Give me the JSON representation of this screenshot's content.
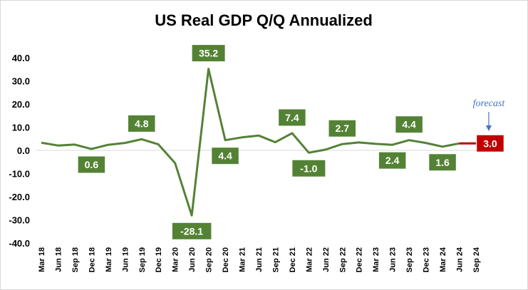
{
  "chart_data": {
    "type": "line",
    "title": "US Real GDP Q/Q Annualized",
    "xlabel": "",
    "ylabel": "",
    "ylim": [
      -40,
      40
    ],
    "yticks": [
      "40.0",
      "30.0",
      "20.0",
      "10.0",
      "0.0",
      "-10.0",
      "-20.0",
      "-30.0",
      "-40.0"
    ],
    "ytick_values": [
      40,
      30,
      20,
      10,
      0,
      -10,
      -20,
      -30,
      -40
    ],
    "grid": false,
    "categories": [
      "Mar 18",
      "Jun 18",
      "Sep 18",
      "Dec 18",
      "Mar 19",
      "Jun 19",
      "Sep 19",
      "Dec 19",
      "Mar 20",
      "Jun 20",
      "Sep 20",
      "Dec 20",
      "Mar 21",
      "Jun 21",
      "Sep 21",
      "Dec 21",
      "Mar 22",
      "Jun 22",
      "Sep 22",
      "Dec 22",
      "Mar 23",
      "Jun 23",
      "Sep 23",
      "Dec 23",
      "Mar 24",
      "Jun 24",
      "Sep 24"
    ],
    "series": [
      {
        "values": [
          3.3,
          2.1,
          2.5,
          0.6,
          2.4,
          3.2,
          4.8,
          2.6,
          -5.5,
          -28.1,
          35.2,
          4.4,
          5.6,
          6.4,
          3.5,
          7.4,
          -1.0,
          0.3,
          2.7,
          3.4,
          2.8,
          2.4,
          4.4,
          3.2,
          1.6,
          3.0,
          null
        ],
        "color": "#548235"
      },
      {
        "values": [
          null,
          null,
          null,
          null,
          null,
          null,
          null,
          null,
          null,
          null,
          null,
          null,
          null,
          null,
          null,
          null,
          null,
          null,
          null,
          null,
          null,
          null,
          null,
          null,
          null,
          3.0,
          3.0
        ],
        "color": "#c00000"
      }
    ],
    "data_labels": [
      {
        "category": "Dec 18",
        "text": "0.6",
        "position": "below",
        "color": "#548235"
      },
      {
        "category": "Sep 19",
        "text": "4.8",
        "position": "above",
        "color": "#548235"
      },
      {
        "category": "Jun 20",
        "text": "-28.1",
        "position": "below",
        "color": "#548235"
      },
      {
        "category": "Sep 20",
        "text": "35.2",
        "position": "above",
        "color": "#548235"
      },
      {
        "category": "Dec 20",
        "text": "4.4",
        "position": "below",
        "color": "#548235"
      },
      {
        "category": "Dec 21",
        "text": "7.4",
        "position": "above",
        "color": "#548235"
      },
      {
        "category": "Mar 22",
        "text": "-1.0",
        "position": "below",
        "color": "#548235"
      },
      {
        "category": "Sep 22",
        "text": "2.7",
        "position": "above",
        "color": "#548235"
      },
      {
        "category": "Jun 23",
        "text": "2.4",
        "position": "below",
        "color": "#548235"
      },
      {
        "category": "Sep 23",
        "text": "4.4",
        "position": "above",
        "color": "#548235"
      },
      {
        "category": "Mar 24",
        "text": "1.6",
        "position": "below",
        "color": "#548235"
      },
      {
        "category": "Sep 24",
        "text": "3.0",
        "position": "right",
        "color": "#c00000"
      }
    ],
    "annotation": {
      "text": "forecast",
      "category": "Sep 24",
      "color": "#4472c4"
    }
  }
}
